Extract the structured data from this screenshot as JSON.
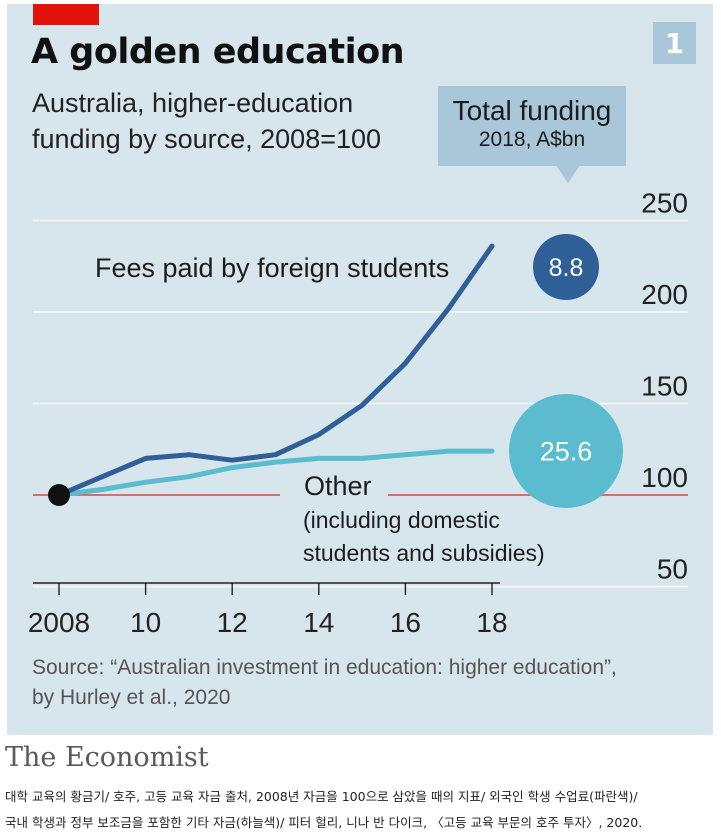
{
  "header": {
    "badge": "1",
    "title": "A golden education",
    "subtitle_line1": "Australia, higher-education",
    "subtitle_line2": "funding by source, 2008=100"
  },
  "legend": {
    "title": "Total funding",
    "subtitle": "2018, A$bn"
  },
  "labels": {
    "foreign": "Fees paid by foreign students",
    "other_line1": "Other",
    "other_line2": "(including domestic",
    "other_line3": "students and subsidies)"
  },
  "chart_data": {
    "type": "line",
    "title": "A golden education",
    "subtitle": "Australia, higher-education funding by source, 2008=100",
    "x": [
      2008,
      2009,
      2010,
      2011,
      2012,
      2013,
      2014,
      2015,
      2016,
      2017,
      2018
    ],
    "x_ticks": [
      2008,
      2010,
      2012,
      2014,
      2016,
      2018
    ],
    "x_tick_labels": [
      "2008",
      "10",
      "12",
      "14",
      "16",
      "18"
    ],
    "y_ticks": [
      50,
      100,
      150,
      200,
      250
    ],
    "ylim": [
      50,
      250
    ],
    "baseline": 100,
    "grid": true,
    "series": [
      {
        "name": "Fees paid by foreign students",
        "color": "#2f5f97",
        "values": [
          100,
          110,
          120,
          122,
          119,
          122,
          133,
          149,
          172,
          202,
          236
        ],
        "total_funding": "8.8"
      },
      {
        "name": "Other (including domestic students and subsidies)",
        "color": "#5bbccf",
        "values": [
          100,
          103,
          107,
          110,
          115,
          118,
          120,
          120,
          122,
          124,
          124
        ],
        "total_funding": "25.6"
      }
    ]
  },
  "source": {
    "line1": "Source: “Australian investment in education: higher education”,",
    "line2": "by Hurley et al., 2020"
  },
  "brand": "The Economist",
  "caption": {
    "line1": "대학 교육의 황금기/ 호주, 고등 교육 자금 출처, 2008년 자금을 100으로 삼았을 때의 지표/ 외국인 학생 수업료(파란색)/",
    "line2": "국내 학생과 정부 보조금을 포함한 기타 자금(하늘색)/ 피터 헐리, 니나 반 다이크, 〈고등 교육 부문의 호주 투자〉, 2020."
  }
}
